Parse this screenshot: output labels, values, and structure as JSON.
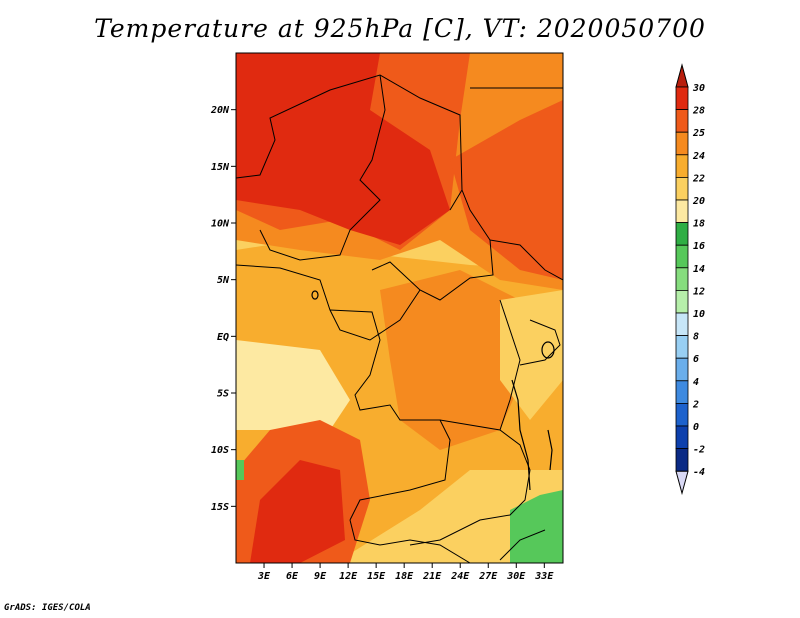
{
  "title": "Temperature at 925hPa [C], VT: 2020050700",
  "footer": "GrADS: IGES/COLA",
  "map": {
    "lon_range": [
      0,
      35
    ],
    "lat_range": [
      -20,
      25
    ],
    "y_ticks": [
      "20N",
      "15N",
      "10N",
      "5N",
      "EQ",
      "5S",
      "10S",
      "15S"
    ],
    "x_ticks": [
      "3E",
      "6E",
      "9E",
      "12E",
      "15E",
      "18E",
      "21E",
      "24E",
      "27E",
      "30E",
      "33E"
    ]
  },
  "colorbar": {
    "labels": [
      "30",
      "28",
      "25",
      "24",
      "22",
      "20",
      "18",
      "16",
      "14",
      "12",
      "10",
      "8",
      "6",
      "4",
      "2",
      "0",
      "-2",
      "-4"
    ],
    "colors": [
      "#e02a10",
      "#ef5a1a",
      "#f58a1f",
      "#f8ad2e",
      "#fbd060",
      "#fde9a2",
      "#2fae44",
      "#56c85a",
      "#86dd7e",
      "#b6efaa",
      "#c7e6f8",
      "#98cff3",
      "#6aaeeb",
      "#3e8ae0",
      "#1d62cd",
      "#0d40ad",
      "#0a2a85",
      "#0a1a5e"
    ],
    "top_arrow_color": "#b81e0d",
    "bottom_arrow_color": "#d8d8f4"
  }
}
